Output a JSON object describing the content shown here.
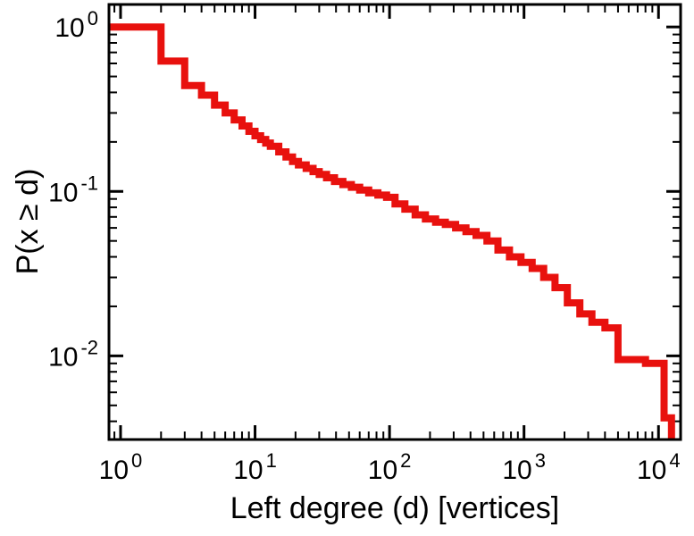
{
  "figure": {
    "background": "#ffffff"
  },
  "chart_data": {
    "type": "line",
    "plot_style": "step-post-ccdf",
    "title": "",
    "xlabel": "Left degree (d) [vertices]",
    "ylabel": "P(x ≥ d)",
    "xscale": "log",
    "yscale": "log",
    "xlim": [
      0.82,
      14600
    ],
    "ylim": [
      0.0031,
      1.37
    ],
    "x_tick_exponents": [
      0,
      1,
      2,
      3,
      4
    ],
    "y_tick_exponents": [
      0,
      -1,
      -2
    ],
    "tick_label_base": "10",
    "grid": false,
    "legend": false,
    "frame_color": "#000000",
    "series": [
      {
        "name": "left-degree-ccdf",
        "color": "#e8110e",
        "linewidth": 8,
        "step": "post",
        "points": [
          [
            1,
            1.0
          ],
          [
            2,
            0.62
          ],
          [
            3,
            0.44
          ],
          [
            4,
            0.385
          ],
          [
            5,
            0.335
          ],
          [
            6,
            0.3
          ],
          [
            7,
            0.272
          ],
          [
            8,
            0.25
          ],
          [
            9,
            0.232
          ],
          [
            10,
            0.218
          ],
          [
            11,
            0.207
          ],
          [
            12,
            0.197
          ],
          [
            13,
            0.188
          ],
          [
            15,
            0.174
          ],
          [
            17,
            0.162
          ],
          [
            19,
            0.152
          ],
          [
            21,
            0.145
          ],
          [
            24,
            0.138
          ],
          [
            27,
            0.132
          ],
          [
            30,
            0.127
          ],
          [
            34,
            0.121
          ],
          [
            39,
            0.115
          ],
          [
            45,
            0.11
          ],
          [
            52,
            0.106
          ],
          [
            60,
            0.102
          ],
          [
            70,
            0.098
          ],
          [
            82,
            0.095
          ],
          [
            95,
            0.092
          ],
          [
            110,
            0.084
          ],
          [
            130,
            0.078
          ],
          [
            155,
            0.072
          ],
          [
            185,
            0.068
          ],
          [
            220,
            0.065
          ],
          [
            260,
            0.063
          ],
          [
            310,
            0.06
          ],
          [
            370,
            0.057
          ],
          [
            440,
            0.054
          ],
          [
            530,
            0.05
          ],
          [
            640,
            0.044
          ],
          [
            780,
            0.04
          ],
          [
            950,
            0.037
          ],
          [
            1150,
            0.034
          ],
          [
            1400,
            0.03
          ],
          [
            1700,
            0.026
          ],
          [
            2100,
            0.021
          ],
          [
            2600,
            0.018
          ],
          [
            3200,
            0.016
          ],
          [
            4000,
            0.0148
          ],
          [
            5000,
            0.0095
          ],
          [
            8000,
            0.009
          ],
          [
            11000,
            0.0042
          ],
          [
            12500,
            0.003
          ]
        ]
      }
    ]
  }
}
